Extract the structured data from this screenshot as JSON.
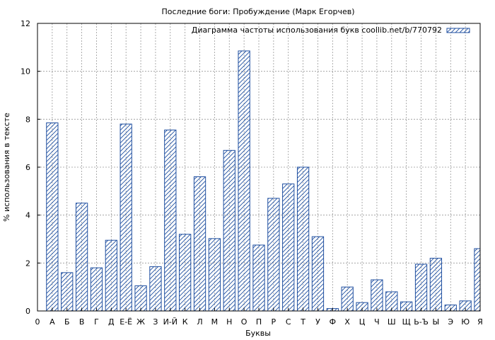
{
  "chart_data": {
    "type": "bar",
    "title": "Последние боги: Пробуждение (Марк Егорчев)",
    "xlabel": "Буквы",
    "ylabel": "% использования в тексте",
    "ylim": [
      0,
      12
    ],
    "yticks": [
      "0",
      "2",
      "4",
      "6",
      "8",
      "10",
      "12"
    ],
    "x_origin_label": "0",
    "grid": true,
    "legend_position": "top-right",
    "bar_color": "#1f4fa0",
    "categories": [
      "А",
      "Б",
      "В",
      "Г",
      "Д",
      "Е-Ё",
      "Ж",
      "З",
      "И-Й",
      "К",
      "Л",
      "М",
      "Н",
      "О",
      "П",
      "Р",
      "С",
      "Т",
      "У",
      "Ф",
      "Х",
      "Ц",
      "Ч",
      "Ш",
      "Щ",
      "Ь-Ъ",
      "Ы",
      "Э",
      "Ю",
      "Я"
    ],
    "series": [
      {
        "name": "Диаграмма частоты использования букв coollib.net/b/770792",
        "values": [
          7.85,
          1.6,
          4.5,
          1.8,
          2.95,
          7.8,
          1.05,
          1.85,
          7.55,
          3.2,
          5.6,
          3.02,
          6.7,
          10.85,
          2.75,
          4.7,
          5.3,
          6.0,
          3.1,
          0.1,
          1.0,
          0.35,
          1.3,
          0.8,
          0.38,
          1.95,
          2.2,
          0.25,
          0.42,
          2.6
        ]
      }
    ]
  }
}
